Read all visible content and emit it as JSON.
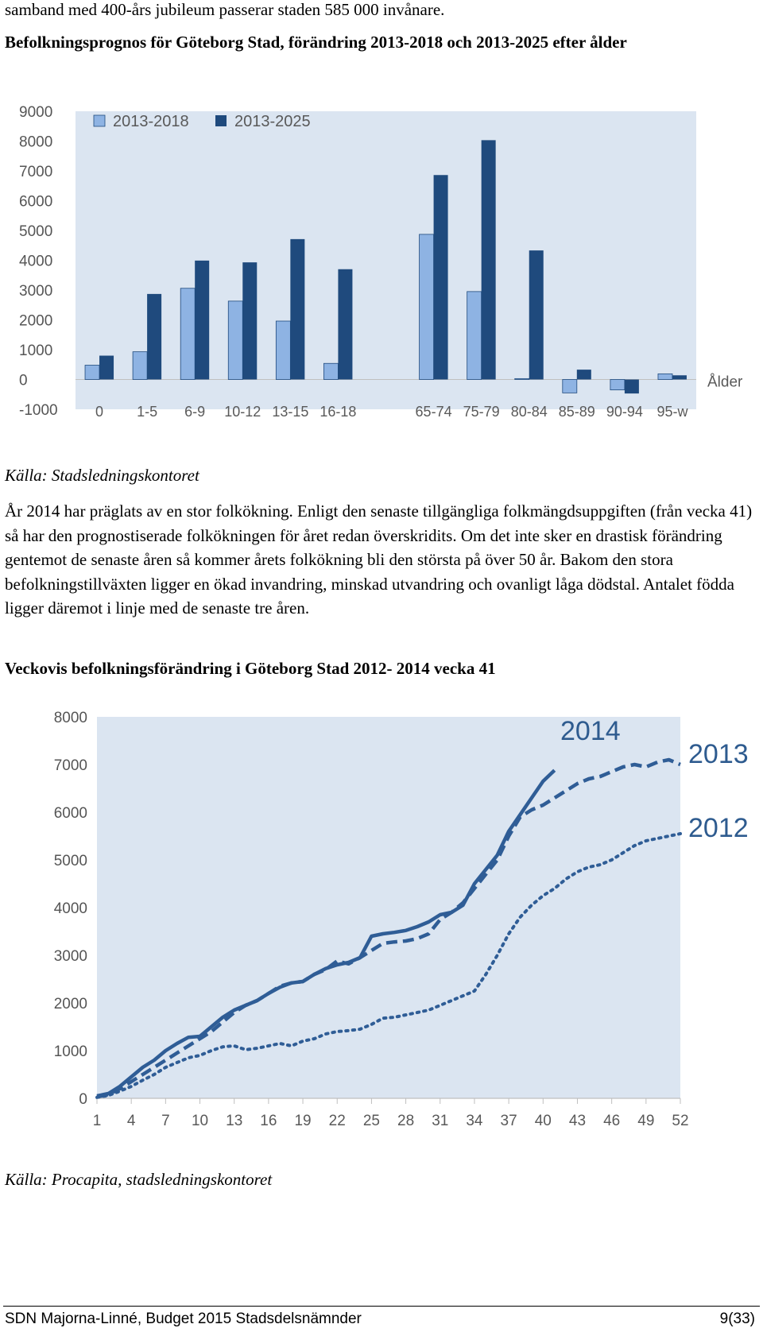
{
  "intro_fragment": "samband med 400-års jubileum passerar staden 585 000 invånare.",
  "chart1": {
    "heading": "Befolkningsprognos för Göteborg Stad, förändring 2013-2018 och 2013-2025 efter ålder",
    "source": "Källa: Stadsledningskontoret"
  },
  "body_paragraph": "År 2014 har präglats av en stor folkökning. Enligt den senaste tillgängliga folkmängdsuppgiften (från vecka 41) så har den prognostiserade folkökningen för året redan överskridits. Om det inte sker en drastisk förändring gentemot de senaste åren så kommer årets folkökning bli den största på över 50 år. Bakom den stora befolkningstillväxten ligger en ökad invandring, minskad utvandring och ovanligt låga dödstal. Antalet födda ligger däremot i linje med de senaste tre åren.",
  "chart2": {
    "heading": "Veckovis befolkningsförändring i Göteborg Stad 2012- 2014 vecka 41",
    "source": "Källa: Procapita, stadsledningskontoret"
  },
  "footer": {
    "left": "SDN Majorna-Linné, Budget 2015 Stadsdelsnämnder",
    "right": "9(33)"
  },
  "chart_data": [
    {
      "type": "bar",
      "x_title": "Ålder",
      "categories": [
        "0",
        "1-5",
        "6-9",
        "10-12",
        "13-15",
        "16-18",
        "",
        "65-74",
        "75-79",
        "80-84",
        "85-89",
        "90-94",
        "95-w"
      ],
      "series": [
        {
          "name": "2013-2018",
          "values": [
            480,
            930,
            3060,
            2630,
            1960,
            540,
            null,
            4870,
            2950,
            30,
            -450,
            -350,
            190
          ],
          "color": "#8eb3e3"
        },
        {
          "name": "2013-2025",
          "values": [
            800,
            2870,
            3990,
            3930,
            4710,
            3700,
            null,
            6860,
            8030,
            4330,
            330,
            -470,
            140
          ],
          "color": "#1f4a7d"
        }
      ],
      "ylim": [
        -1000,
        9000
      ],
      "yticks": [
        "9000",
        "8000",
        "7000",
        "6000",
        "5000",
        "4000",
        "3000",
        "2000",
        "1000",
        "0",
        "-1000"
      ],
      "legend": "top-left",
      "grid": false
    },
    {
      "type": "line",
      "xticks": [
        "1",
        "4",
        "7",
        "10",
        "13",
        "16",
        "19",
        "22",
        "25",
        "28",
        "31",
        "34",
        "37",
        "40",
        "43",
        "46",
        "49",
        "52"
      ],
      "xlim": [
        1,
        52
      ],
      "ylim": [
        0,
        8000
      ],
      "yticks": [
        "8000",
        "7000",
        "6000",
        "5000",
        "4000",
        "3000",
        "2000",
        "1000",
        "0"
      ],
      "grid": false,
      "series": [
        {
          "name": "2014",
          "style": "solid",
          "x": [
            1,
            2,
            3,
            4,
            5,
            6,
            7,
            8,
            9,
            10,
            11,
            12,
            13,
            14,
            15,
            16,
            17,
            18,
            19,
            20,
            21,
            22,
            23,
            24,
            25,
            26,
            27,
            28,
            29,
            30,
            31,
            32,
            33,
            34,
            35,
            36,
            37,
            38,
            39,
            40,
            41
          ],
          "y": [
            50,
            100,
            250,
            450,
            650,
            800,
            1000,
            1150,
            1280,
            1300,
            1500,
            1700,
            1850,
            1950,
            2050,
            2200,
            2330,
            2420,
            2450,
            2600,
            2720,
            2800,
            2850,
            2950,
            3400,
            3450,
            3480,
            3520,
            3600,
            3700,
            3850,
            3900,
            4050,
            4500,
            4800,
            5100,
            5600,
            5950,
            6300,
            6650,
            6880
          ]
        },
        {
          "name": "2013",
          "style": "dashed",
          "x": [
            1,
            2,
            3,
            4,
            5,
            6,
            7,
            8,
            9,
            10,
            11,
            12,
            13,
            14,
            15,
            16,
            17,
            18,
            19,
            20,
            21,
            22,
            23,
            24,
            25,
            26,
            27,
            28,
            29,
            30,
            31,
            32,
            33,
            34,
            35,
            36,
            37,
            38,
            39,
            40,
            41,
            42,
            43,
            44,
            45,
            46,
            47,
            48,
            49,
            50,
            51,
            52
          ],
          "y": [
            30,
            80,
            200,
            350,
            500,
            650,
            800,
            950,
            1100,
            1250,
            1400,
            1600,
            1800,
            1950,
            2050,
            2200,
            2350,
            2420,
            2450,
            2600,
            2700,
            2880,
            2820,
            2950,
            3100,
            3250,
            3280,
            3300,
            3350,
            3450,
            3750,
            3900,
            4100,
            4400,
            4700,
            5000,
            5500,
            5900,
            6050,
            6150,
            6300,
            6450,
            6600,
            6700,
            6750,
            6850,
            6950,
            7000,
            6950,
            7050,
            7100,
            7000
          ]
        },
        {
          "name": "2012",
          "style": "dotted",
          "x": [
            1,
            2,
            3,
            4,
            5,
            6,
            7,
            8,
            9,
            10,
            11,
            12,
            13,
            14,
            15,
            16,
            17,
            18,
            19,
            20,
            21,
            22,
            23,
            24,
            25,
            26,
            27,
            28,
            29,
            30,
            31,
            32,
            33,
            34,
            35,
            36,
            37,
            38,
            39,
            40,
            41,
            42,
            43,
            44,
            45,
            46,
            47,
            48,
            49,
            50,
            51,
            52
          ],
          "y": [
            20,
            60,
            150,
            250,
            380,
            500,
            650,
            750,
            850,
            900,
            1000,
            1080,
            1100,
            1020,
            1050,
            1100,
            1150,
            1100,
            1200,
            1250,
            1350,
            1400,
            1420,
            1450,
            1550,
            1680,
            1700,
            1750,
            1800,
            1850,
            1950,
            2050,
            2150,
            2250,
            2600,
            3000,
            3450,
            3800,
            4050,
            4250,
            4400,
            4600,
            4750,
            4850,
            4900,
            5000,
            5150,
            5300,
            5400,
            5450,
            5500,
            5550
          ]
        }
      ]
    }
  ]
}
